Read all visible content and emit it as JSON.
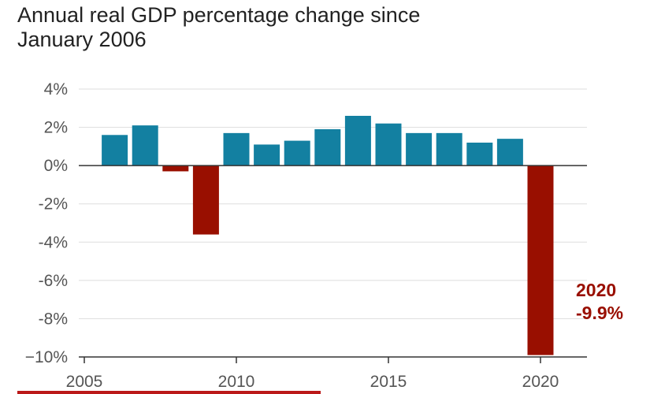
{
  "chart_data": {
    "type": "bar",
    "title": "Annual real GDP percentage change since\nJanuary 2006",
    "xlabel": "",
    "ylabel": "",
    "ylim": [
      -10,
      4
    ],
    "xlim": [
      2005,
      2021.5
    ],
    "y_ticks": [
      {
        "value": 4,
        "label": "4%"
      },
      {
        "value": 2,
        "label": "2%"
      },
      {
        "value": 0,
        "label": "0%"
      },
      {
        "value": -2,
        "label": "-2%"
      },
      {
        "value": -4,
        "label": "-4%"
      },
      {
        "value": -6,
        "label": "-6%"
      },
      {
        "value": -8,
        "label": "-8%"
      },
      {
        "value": -10,
        "label": "−10%"
      }
    ],
    "x_ticks": [
      {
        "value": 2005,
        "label": "2005"
      },
      {
        "value": 2010,
        "label": "2010"
      },
      {
        "value": 2015,
        "label": "2015"
      },
      {
        "value": 2020,
        "label": "2020"
      }
    ],
    "grid": true,
    "x": [
      2006,
      2007,
      2008,
      2009,
      2010,
      2011,
      2012,
      2013,
      2014,
      2015,
      2016,
      2017,
      2018,
      2019,
      2020
    ],
    "values": [
      1.6,
      2.1,
      -0.3,
      -3.6,
      1.7,
      1.1,
      1.3,
      1.9,
      2.6,
      2.2,
      1.7,
      1.7,
      1.2,
      1.4,
      -9.9
    ],
    "annotation": {
      "year_label": "2020",
      "value_label": "-9.9%"
    }
  },
  "colors": {
    "positive": "#1380a1",
    "negative": "#990f00",
    "axis": "#333333",
    "grid": "#dddddd",
    "annotation": "#990f00",
    "accent_line": "#bb1919"
  }
}
